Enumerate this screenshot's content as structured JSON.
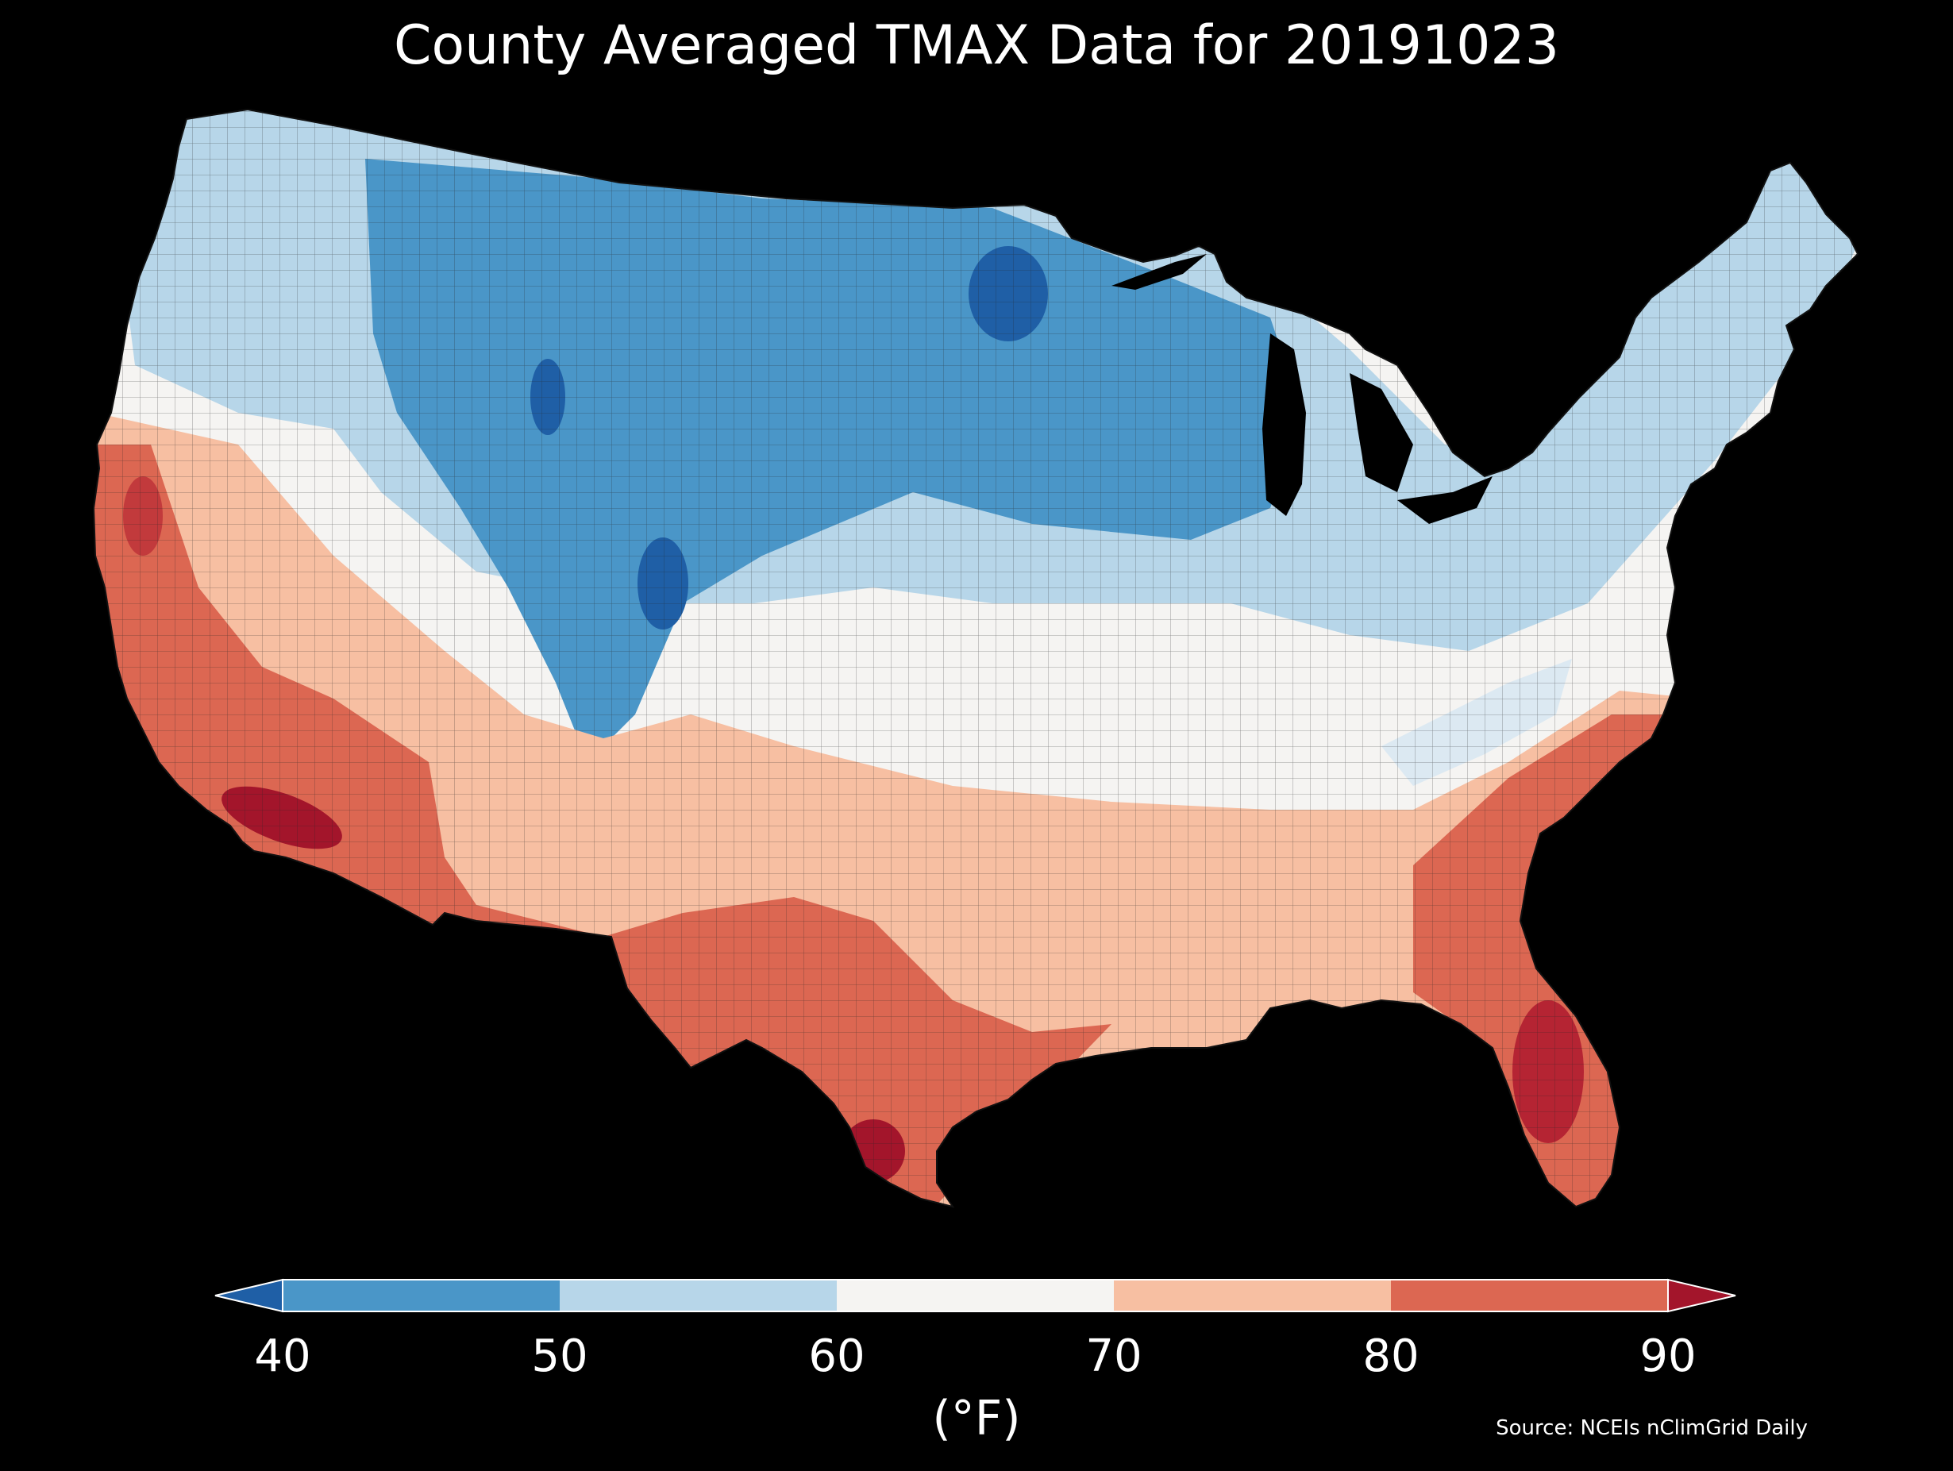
{
  "title": "County Averaged TMAX Data for 20191023",
  "map": {
    "region": "contiguous-us-counties",
    "variable": "TMAX",
    "date": "20191023",
    "pattern": "cool (40-60°F) across northern Plains, Rockies and Upper Midwest; warm (70-90°F) across southern California, Arizona, south Texas and Florida"
  },
  "colorbar": {
    "unit": "(°F)",
    "ticks": [
      "40",
      "50",
      "60",
      "70",
      "80",
      "90"
    ],
    "bins": [
      {
        "range": "<40",
        "color": "#1f5fa6"
      },
      {
        "range": "40-50",
        "color": "#4a96c8"
      },
      {
        "range": "50-60",
        "color": "#b7d6e9"
      },
      {
        "range": "60-70",
        "color": "#f5f4f2"
      },
      {
        "range": "70-80",
        "color": "#f7bfa2"
      },
      {
        "range": "80-90",
        "color": "#dc6752"
      },
      {
        "range": ">90",
        "color": "#a3152b"
      }
    ]
  },
  "source": "Source: NCEIs nClimGrid Daily"
}
